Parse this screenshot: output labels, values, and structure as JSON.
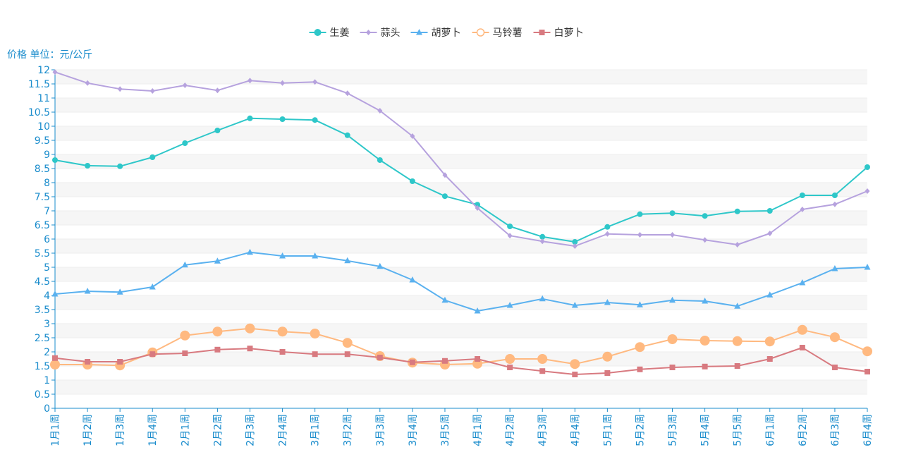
{
  "chart_data": {
    "type": "line",
    "title": "",
    "ylabel": "价格 单位：元/公斤",
    "xlabel": "",
    "ylim": [
      0,
      12
    ],
    "ytick_step": 0.5,
    "grid": true,
    "legend_position": "top-center",
    "axis_color": "#1a8ccc",
    "categories": [
      "1月1周",
      "1月2周",
      "1月3周",
      "1月4周",
      "2月1周",
      "2月2周",
      "2月3周",
      "2月4周",
      "3月1周",
      "3月2周",
      "3月3周",
      "3月4周",
      "3月5周",
      "4月1周",
      "4月2周",
      "4月3周",
      "4月4周",
      "5月1周",
      "5月2周",
      "5月3周",
      "5月4周",
      "5月5周",
      "6月1周",
      "6月2周",
      "6月3周",
      "6月4周"
    ],
    "series": [
      {
        "name": "生姜",
        "color": "#2ec7c9",
        "marker": "circle",
        "values": [
          8.8,
          8.6,
          8.58,
          8.9,
          9.4,
          9.85,
          10.28,
          10.25,
          10.22,
          9.68,
          8.8,
          8.05,
          7.52,
          7.22,
          6.45,
          6.08,
          5.9,
          6.43,
          6.88,
          6.92,
          6.82,
          6.98,
          7.0,
          7.55,
          7.55,
          8.55
        ]
      },
      {
        "name": "蒜头",
        "color": "#b6a2de",
        "marker": "diamond",
        "values": [
          11.92,
          11.53,
          11.32,
          11.25,
          11.45,
          11.27,
          11.62,
          11.53,
          11.57,
          11.17,
          10.55,
          9.65,
          8.27,
          7.1,
          6.12,
          5.92,
          5.75,
          6.18,
          6.15,
          6.15,
          5.97,
          5.8,
          6.2,
          7.05,
          7.23,
          7.7
        ]
      },
      {
        "name": "胡萝卜",
        "color": "#5ab1ef",
        "marker": "triangle",
        "values": [
          4.05,
          4.15,
          4.12,
          4.3,
          5.08,
          5.22,
          5.53,
          5.4,
          5.4,
          5.23,
          5.03,
          4.55,
          3.83,
          3.45,
          3.65,
          3.88,
          3.65,
          3.75,
          3.67,
          3.83,
          3.8,
          3.62,
          4.02,
          4.45,
          4.95,
          5.0
        ]
      },
      {
        "name": "马铃薯",
        "color": "#ffb980",
        "marker": "circle-large",
        "values": [
          1.55,
          1.55,
          1.52,
          1.98,
          2.58,
          2.72,
          2.83,
          2.72,
          2.65,
          2.32,
          1.85,
          1.62,
          1.55,
          1.58,
          1.75,
          1.75,
          1.57,
          1.83,
          2.17,
          2.45,
          2.4,
          2.38,
          2.37,
          2.78,
          2.52,
          2.02
        ]
      },
      {
        "name": "白萝卜",
        "color": "#d87a80",
        "marker": "square",
        "values": [
          1.78,
          1.65,
          1.65,
          1.92,
          1.95,
          2.08,
          2.12,
          2.0,
          1.92,
          1.92,
          1.8,
          1.63,
          1.68,
          1.75,
          1.45,
          1.32,
          1.2,
          1.25,
          1.38,
          1.45,
          1.48,
          1.5,
          1.75,
          2.15,
          1.45,
          1.3
        ]
      }
    ]
  }
}
